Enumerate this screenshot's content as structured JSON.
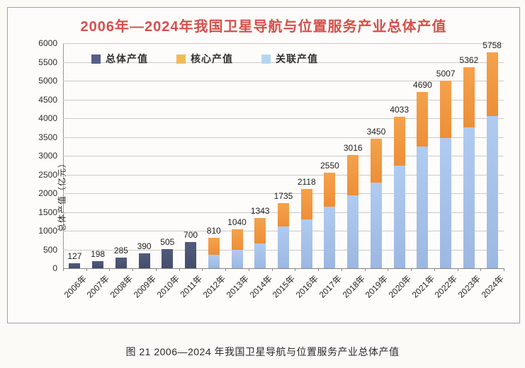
{
  "figure": {
    "title": "2006年—2024年我国卫星导航与位置服务产业总体产值",
    "title_color": "#d4504c"
  },
  "caption": "图 21  2006—2024 年我国卫星导航与位置服务产业总体产值",
  "y_axis": {
    "title": "总体产值（亿元）",
    "min": 0,
    "max": 6000,
    "step": 500
  },
  "legend": [
    {
      "key": "overall",
      "label": "总体产值",
      "swatch_color": "#545f88"
    },
    {
      "key": "core",
      "label": "核心产值",
      "swatch_color": "#f2bb57"
    },
    {
      "key": "associated",
      "label": "关联产值",
      "swatch_color": "#b5d6f1"
    }
  ],
  "chart_data": {
    "type": "bar",
    "stacked": true,
    "grid": true,
    "legend_position": "top-left-inside",
    "ylim": [
      0,
      6000
    ],
    "ytick_step": 500,
    "categories": [
      "2006年",
      "2007年",
      "2008年",
      "2009年",
      "2010年",
      "2011年",
      "2012年",
      "2013年",
      "2014年",
      "2015年",
      "2016年",
      "2017年",
      "2018年",
      "2019年",
      "2020年",
      "2021年",
      "2022年",
      "2023年",
      "2024年"
    ],
    "totals": [
      127,
      198,
      285,
      390,
      505,
      700,
      810,
      1040,
      1343,
      1735,
      2118,
      2550,
      3016,
      3450,
      4033,
      4690,
      5007,
      5362,
      5758
    ],
    "series": [
      {
        "key": "overall",
        "name": "总体产值",
        "color": "#4b5373",
        "values": [
          127,
          198,
          285,
          390,
          505,
          700,
          null,
          null,
          null,
          null,
          null,
          null,
          null,
          null,
          null,
          null,
          null,
          null,
          null
        ]
      },
      {
        "key": "associated",
        "name": "关联产值",
        "color": "#a6c2e9",
        "values": [
          null,
          null,
          null,
          null,
          null,
          null,
          360,
          495,
          658,
          1111,
          1310,
          1648,
          1947,
          2284,
          2738,
          3236,
          3480,
          3751,
          4059
        ]
      },
      {
        "key": "core",
        "name": "核心产值",
        "color": "#f0963f",
        "values": [
          null,
          null,
          null,
          null,
          null,
          null,
          450,
          545,
          685,
          624,
          808,
          902,
          1069,
          1166,
          1295,
          1454,
          1527,
          1611,
          1699
        ]
      }
    ]
  }
}
